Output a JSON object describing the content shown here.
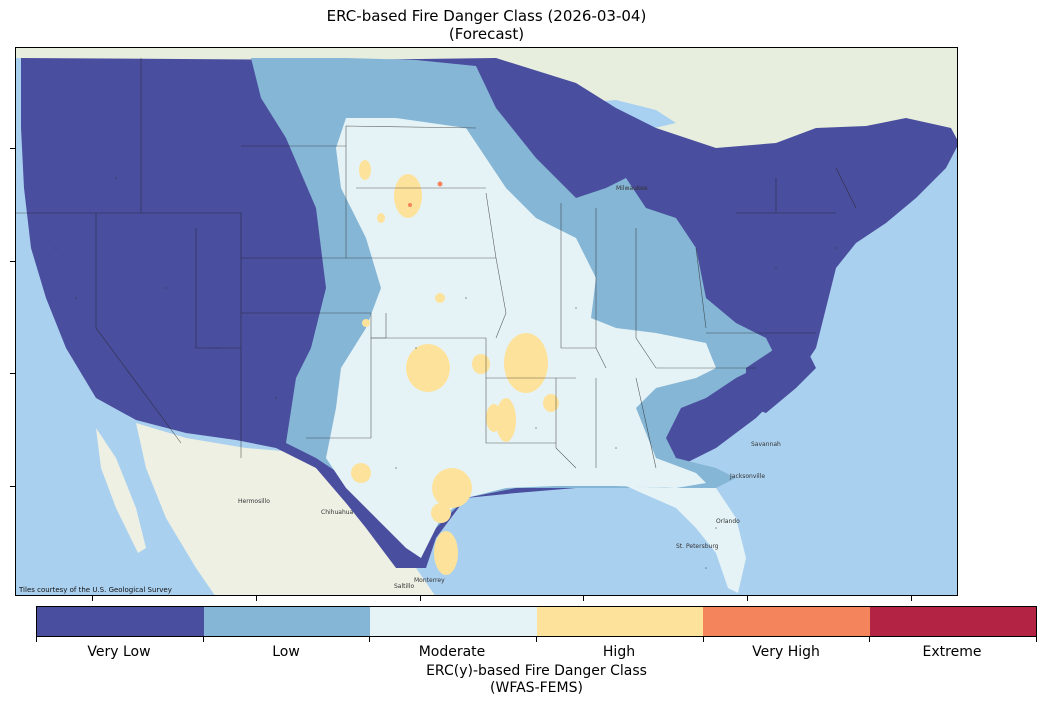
{
  "title": {
    "line1": "ERC-based Fire Danger Class (2026-03-04)",
    "line2": "(Forecast)"
  },
  "map": {
    "attribution": "Tiles courtesy of the U.S. Geological Survey",
    "base_colors": {
      "ocean": "#9cc8ec",
      "land": "#eef0e4",
      "lakes": "#a8d0f0"
    },
    "place_labels": [
      "Hermosillo",
      "Chihuahua",
      "Monterrey",
      "Saltillo",
      "Milwaukee",
      "Jacksonville",
      "St. Petersburg",
      "Orlando",
      "Savannah"
    ]
  },
  "colorbar": {
    "classes": [
      {
        "label": "Very Low",
        "color": "#4a4e9e"
      },
      {
        "label": "Low",
        "color": "#86b6d6"
      },
      {
        "label": "Moderate",
        "color": "#e6f3f6"
      },
      {
        "label": "High",
        "color": "#fde29b"
      },
      {
        "label": "Very High",
        "color": "#f4845b"
      },
      {
        "label": "Extreme",
        "color": "#b32444"
      }
    ],
    "title_line1": "ERC(y)-based Fire Danger Class",
    "title_line2": "(WFAS-FEMS)"
  }
}
